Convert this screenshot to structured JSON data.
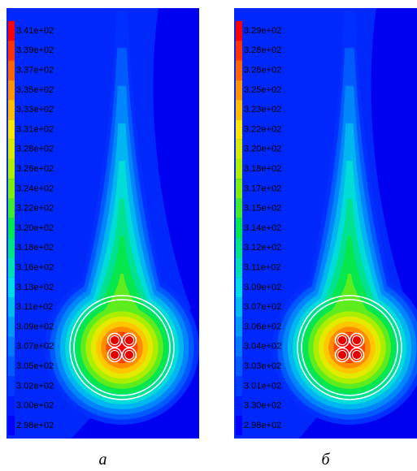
{
  "panels": [
    {
      "legend": [
        "3.41e+02",
        "3.39e+02",
        "3.37e+02",
        "3.35e+02",
        "3.33e+02",
        "3.31e+02",
        "3.28e+02",
        "3.26e+02",
        "3.24e+02",
        "3.22e+02",
        "3.20e+02",
        "3.18e+02",
        "3.16e+02",
        "3.13e+02",
        "3.11e+02",
        "3.09e+02",
        "3.07e+02",
        "3.05e+02",
        "3.02e+02",
        "3.00e+02",
        "2.98e+02"
      ],
      "caption": "a"
    },
    {
      "legend": [
        "3.29e+02",
        "3.28e+02",
        "3.26e+02",
        "3.25e+02",
        "3.23e+02",
        "3.22e+02",
        "3.20e+02",
        "3.18e+02",
        "3.17e+02",
        "3.15e+02",
        "3.14e+02",
        "3.12e+02",
        "3.11e+02",
        "3.09e+02",
        "3.07e+02",
        "3.06e+02",
        "3.04e+02",
        "3.03e+02",
        "3.01e+02",
        "3.30e+02",
        "2.98e+02"
      ],
      "caption": "б"
    }
  ]
}
